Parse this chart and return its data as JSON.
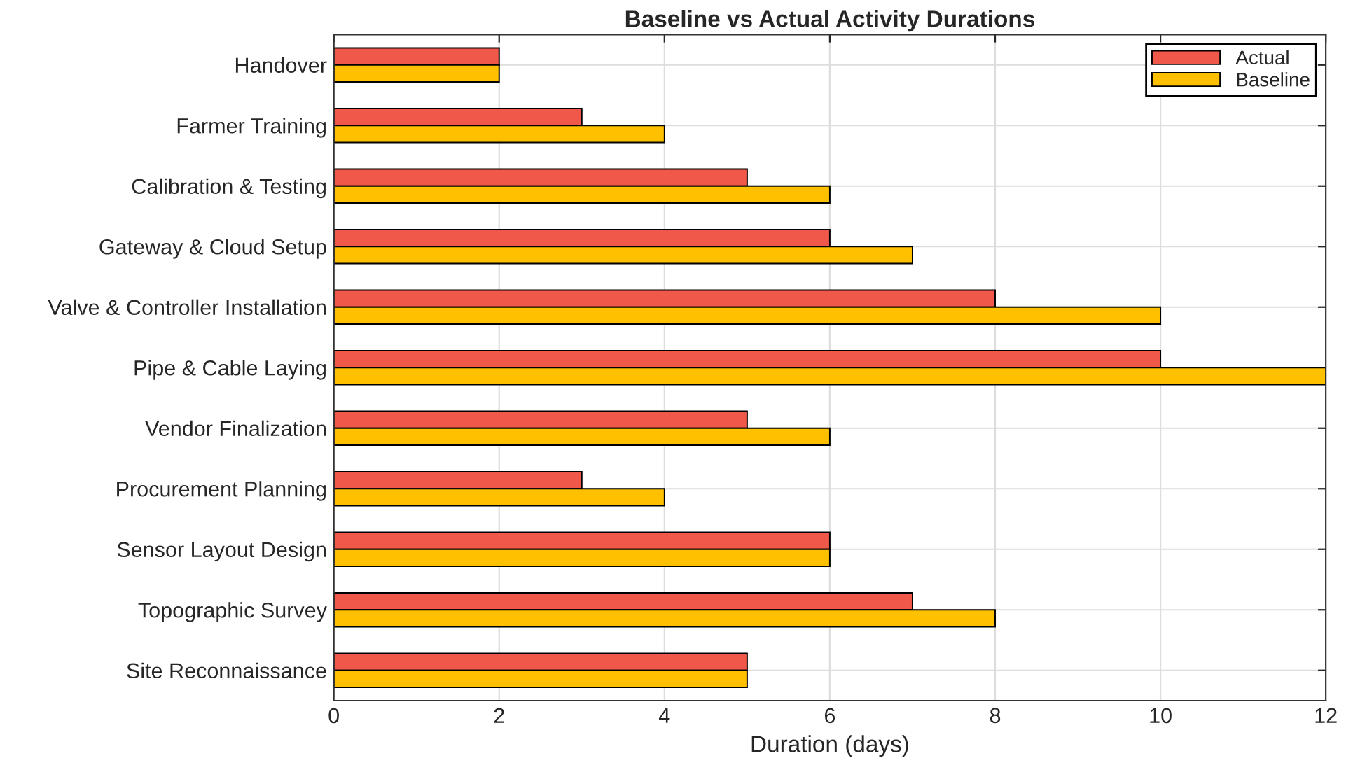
{
  "chart_data": {
    "type": "bar",
    "orientation": "horizontal",
    "title": "Baseline vs Actual Activity Durations",
    "xlabel": "Duration (days)",
    "categories": [
      "Handover",
      "Farmer Training",
      "Calibration & Testing",
      "Gateway & Cloud Setup",
      "Valve & Controller Installation",
      "Pipe & Cable Laying",
      "Vendor Finalization",
      "Procurement Planning",
      "Sensor Layout Design",
      "Topographic Survey",
      "Site Reconnaissance"
    ],
    "series": [
      {
        "name": "Actual",
        "color": "#f0584a",
        "values": [
          2,
          3,
          5,
          6,
          8,
          10,
          5,
          3,
          6,
          7,
          5
        ]
      },
      {
        "name": "Baseline",
        "color": "#ffc000",
        "values": [
          2,
          4,
          6,
          7,
          10,
          12,
          6,
          4,
          6,
          8,
          5
        ]
      }
    ],
    "xlim": [
      0,
      12
    ],
    "xticks": [
      0,
      2,
      4,
      6,
      8,
      10,
      12
    ],
    "grid": true,
    "legend": "top right"
  }
}
